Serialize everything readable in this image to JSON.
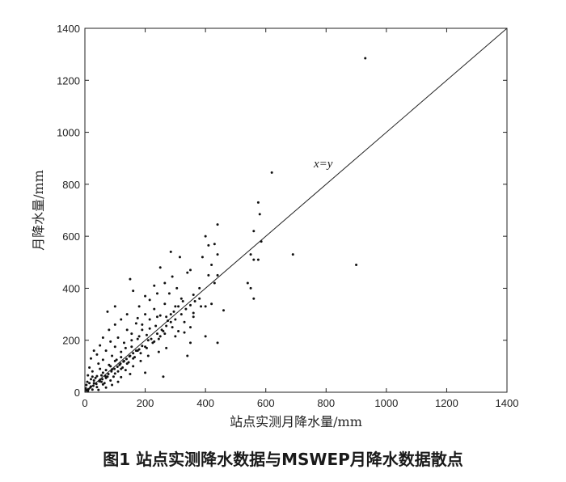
{
  "caption": "图1 站点实测降水数据与MSWEP月降水数据散点",
  "chart_data": {
    "type": "scatter",
    "xlabel": "站点实测月降水量/mm",
    "ylabel": "月降水量/mm",
    "xlim": [
      0,
      1400
    ],
    "ylim": [
      0,
      1400
    ],
    "xticks": [
      0,
      200,
      400,
      600,
      800,
      1000,
      1200,
      1400
    ],
    "yticks": [
      0,
      200,
      400,
      600,
      800,
      1000,
      1200,
      1400
    ],
    "grid": false,
    "annotation": "x=y",
    "reference_line": [
      [
        0,
        0
      ],
      [
        1400,
        1400
      ]
    ],
    "points": [
      [
        930,
        1285
      ],
      [
        620,
        845
      ],
      [
        575,
        730
      ],
      [
        580,
        685
      ],
      [
        440,
        645
      ],
      [
        560,
        620
      ],
      [
        400,
        600
      ],
      [
        585,
        580
      ],
      [
        410,
        565
      ],
      [
        430,
        570
      ],
      [
        550,
        530
      ],
      [
        690,
        530
      ],
      [
        440,
        530
      ],
      [
        390,
        520
      ],
      [
        560,
        510
      ],
      [
        575,
        510
      ],
      [
        285,
        540
      ],
      [
        315,
        520
      ],
      [
        420,
        490
      ],
      [
        900,
        490
      ],
      [
        250,
        480
      ],
      [
        350,
        470
      ],
      [
        340,
        460
      ],
      [
        410,
        450
      ],
      [
        440,
        450
      ],
      [
        290,
        445
      ],
      [
        150,
        435
      ],
      [
        265,
        420
      ],
      [
        430,
        420
      ],
      [
        540,
        420
      ],
      [
        550,
        400
      ],
      [
        230,
        410
      ],
      [
        305,
        400
      ],
      [
        380,
        400
      ],
      [
        160,
        390
      ],
      [
        240,
        380
      ],
      [
        280,
        380
      ],
      [
        360,
        375
      ],
      [
        200,
        370
      ],
      [
        320,
        360
      ],
      [
        560,
        360
      ],
      [
        215,
        355
      ],
      [
        265,
        340
      ],
      [
        420,
        340
      ],
      [
        100,
        330
      ],
      [
        180,
        330
      ],
      [
        310,
        330
      ],
      [
        400,
        330
      ],
      [
        75,
        310
      ],
      [
        230,
        320
      ],
      [
        295,
        310
      ],
      [
        460,
        315
      ],
      [
        140,
        300
      ],
      [
        200,
        300
      ],
      [
        250,
        295
      ],
      [
        360,
        290
      ],
      [
        120,
        280
      ],
      [
        175,
        285
      ],
      [
        215,
        280
      ],
      [
        275,
        275
      ],
      [
        330,
        270
      ],
      [
        100,
        260
      ],
      [
        170,
        265
      ],
      [
        235,
        255
      ],
      [
        290,
        250
      ],
      [
        350,
        250
      ],
      [
        80,
        240
      ],
      [
        140,
        240
      ],
      [
        190,
        240
      ],
      [
        260,
        235
      ],
      [
        310,
        235
      ],
      [
        155,
        225
      ],
      [
        205,
        220
      ],
      [
        250,
        215
      ],
      [
        300,
        215
      ],
      [
        400,
        215
      ],
      [
        60,
        210
      ],
      [
        110,
        210
      ],
      [
        175,
        205
      ],
      [
        85,
        195
      ],
      [
        130,
        190
      ],
      [
        230,
        195
      ],
      [
        350,
        190
      ],
      [
        440,
        190
      ],
      [
        50,
        180
      ],
      [
        100,
        175
      ],
      [
        155,
        175
      ],
      [
        200,
        175
      ],
      [
        270,
        170
      ],
      [
        30,
        160
      ],
      [
        70,
        160
      ],
      [
        120,
        155
      ],
      [
        175,
        160
      ],
      [
        245,
        155
      ],
      [
        40,
        145
      ],
      [
        90,
        140
      ],
      [
        150,
        140
      ],
      [
        210,
        140
      ],
      [
        340,
        140
      ],
      [
        20,
        130
      ],
      [
        60,
        125
      ],
      [
        105,
        125
      ],
      [
        130,
        120
      ],
      [
        185,
        120
      ],
      [
        45,
        110
      ],
      [
        80,
        105
      ],
      [
        115,
        105
      ],
      [
        160,
        100
      ],
      [
        260,
        60
      ],
      [
        15,
        95
      ],
      [
        50,
        90
      ],
      [
        90,
        88
      ],
      [
        135,
        85
      ],
      [
        25,
        80
      ],
      [
        60,
        75
      ],
      [
        100,
        72
      ],
      [
        150,
        70
      ],
      [
        200,
        75
      ],
      [
        10,
        65
      ],
      [
        40,
        62
      ],
      [
        75,
        60
      ],
      [
        120,
        58
      ],
      [
        20,
        50
      ],
      [
        50,
        48
      ],
      [
        85,
        45
      ],
      [
        110,
        40
      ],
      [
        8,
        40
      ],
      [
        30,
        35
      ],
      [
        60,
        30
      ],
      [
        90,
        28
      ],
      [
        5,
        28
      ],
      [
        20,
        22
      ],
      [
        40,
        20
      ],
      [
        70,
        18
      ],
      [
        3,
        15
      ],
      [
        12,
        12
      ],
      [
        25,
        10
      ],
      [
        45,
        9
      ],
      [
        55,
        40
      ],
      [
        70,
        55
      ],
      [
        65,
        35
      ],
      [
        35,
        55
      ],
      [
        15,
        35
      ],
      [
        5,
        8
      ],
      [
        10,
        5
      ],
      [
        18,
        18
      ],
      [
        28,
        25
      ],
      [
        38,
        32
      ],
      [
        48,
        42
      ],
      [
        58,
        50
      ],
      [
        68,
        62
      ],
      [
        78,
        70
      ],
      [
        88,
        80
      ],
      [
        98,
        90
      ],
      [
        108,
        98
      ],
      [
        118,
        110
      ],
      [
        128,
        118
      ],
      [
        138,
        128
      ],
      [
        148,
        138
      ],
      [
        160,
        150
      ],
      [
        170,
        160
      ],
      [
        180,
        165
      ],
      [
        190,
        178
      ],
      [
        210,
        200
      ],
      [
        220,
        205
      ],
      [
        240,
        225
      ],
      [
        255,
        240
      ],
      [
        270,
        255
      ],
      [
        285,
        270
      ],
      [
        300,
        280
      ],
      [
        320,
        300
      ],
      [
        335,
        320
      ],
      [
        350,
        335
      ],
      [
        365,
        350
      ],
      [
        380,
        360
      ],
      [
        120,
        90
      ],
      [
        140,
        110
      ],
      [
        160,
        130
      ],
      [
        95,
        60
      ],
      [
        110,
        80
      ],
      [
        125,
        95
      ],
      [
        145,
        115
      ],
      [
        165,
        135
      ],
      [
        185,
        150
      ],
      [
        205,
        170
      ],
      [
        225,
        190
      ],
      [
        245,
        205
      ],
      [
        190,
        260
      ],
      [
        215,
        245
      ],
      [
        270,
        290
      ],
      [
        300,
        330
      ],
      [
        325,
        350
      ],
      [
        360,
        305
      ],
      [
        385,
        330
      ],
      [
        330,
        230
      ],
      [
        240,
        290
      ],
      [
        265,
        225
      ],
      [
        285,
        300
      ],
      [
        180,
        215
      ],
      [
        155,
        200
      ],
      [
        135,
        170
      ],
      [
        120,
        135
      ],
      [
        100,
        120
      ],
      [
        85,
        100
      ],
      [
        70,
        85
      ],
      [
        55,
        65
      ],
      [
        30,
        45
      ],
      [
        25,
        60
      ]
    ]
  }
}
